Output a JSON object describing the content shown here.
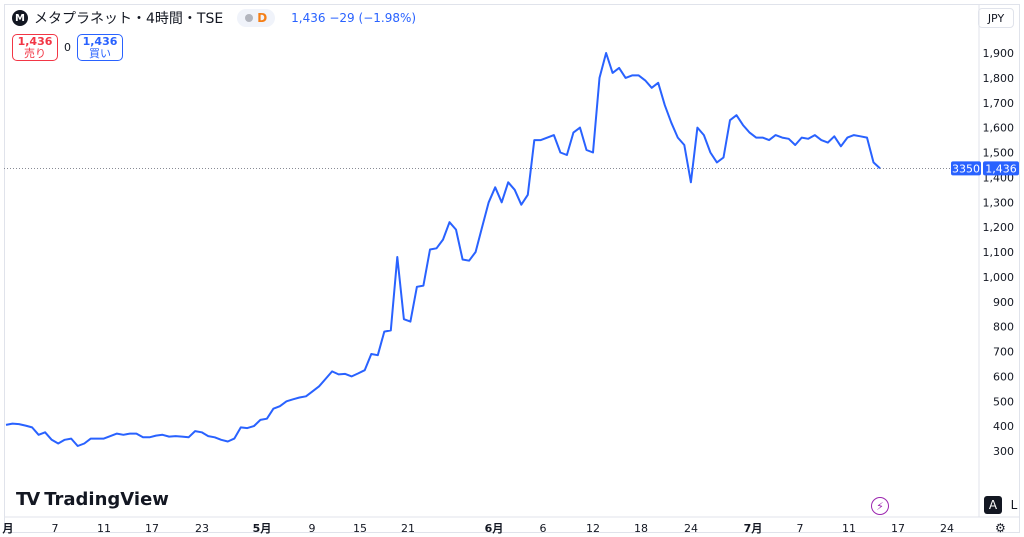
{
  "header": {
    "logo_letter": "M",
    "symbol": "メタプラネット・4時間・TSE",
    "badge": "D",
    "price": "1,436",
    "change": "−29",
    "change_pct": "(−1.98%)"
  },
  "trade": {
    "sell_price": "1,436",
    "sell_label": "売り",
    "spread": "0",
    "buy_price": "1,436",
    "buy_label": "買い"
  },
  "currency": "JPY",
  "brand": "TradingView",
  "price_label_left": "3350",
  "price_label_right": "1,436",
  "toolbar": {
    "a_label": "A",
    "l_label": "L"
  },
  "colors": {
    "line": "#2962ff",
    "sell": "#f23645",
    "buy": "#2962ff"
  },
  "chart_data": {
    "type": "line",
    "ylim": [
      250,
      1960
    ],
    "y_ticks": [
      300,
      400,
      500,
      600,
      700,
      800,
      900,
      1000,
      1100,
      1200,
      1300,
      1400,
      1500,
      1600,
      1700,
      1800,
      1900
    ],
    "y_tick_labels": [
      "300",
      "400",
      "500",
      "600",
      "700",
      "800",
      "900",
      "1,000",
      "1,100",
      "1,200",
      "1,300",
      "1,400",
      "1,500",
      "1,600",
      "1,700",
      "1,800",
      "1,900"
    ],
    "x_ticks": [
      "月",
      "7",
      "11",
      "17",
      "23",
      "5月",
      "9",
      "15",
      "21",
      "6月",
      "6",
      "12",
      "18",
      "24",
      "7月",
      "7",
      "11",
      "17",
      "24"
    ],
    "last_price": 1436,
    "series": [
      {
        "values": [
          405,
          410,
          408,
          402,
          395,
          365,
          375,
          345,
          330,
          345,
          350,
          320,
          330,
          350,
          350,
          350,
          360,
          370,
          365,
          370,
          370,
          355,
          355,
          362,
          365,
          358,
          360,
          358,
          355,
          380,
          375,
          360,
          355,
          345,
          338,
          350,
          395,
          392,
          400,
          425,
          430,
          470,
          480,
          500,
          508,
          515,
          520,
          540,
          560,
          590,
          620,
          608,
          610,
          600,
          612,
          625,
          690,
          685,
          780,
          785,
          1080,
          830,
          820,
          960,
          965,
          1110,
          1115,
          1150,
          1220,
          1190,
          1070,
          1065,
          1100,
          1200,
          1300,
          1360,
          1300,
          1380,
          1350,
          1290,
          1330,
          1550,
          1550,
          1560,
          1570,
          1500,
          1490,
          1580,
          1600,
          1510,
          1500,
          1800,
          1900,
          1820,
          1840,
          1800,
          1810,
          1810,
          1790,
          1760,
          1780,
          1690,
          1620,
          1560,
          1530,
          1380,
          1600,
          1570,
          1500,
          1460,
          1480,
          1630,
          1650,
          1610,
          1580,
          1560,
          1560,
          1550,
          1570,
          1560,
          1555,
          1530,
          1560,
          1555,
          1570,
          1550,
          1540,
          1565,
          1525,
          1560,
          1570,
          1565,
          1560,
          1460,
          1436
        ]
      }
    ]
  }
}
